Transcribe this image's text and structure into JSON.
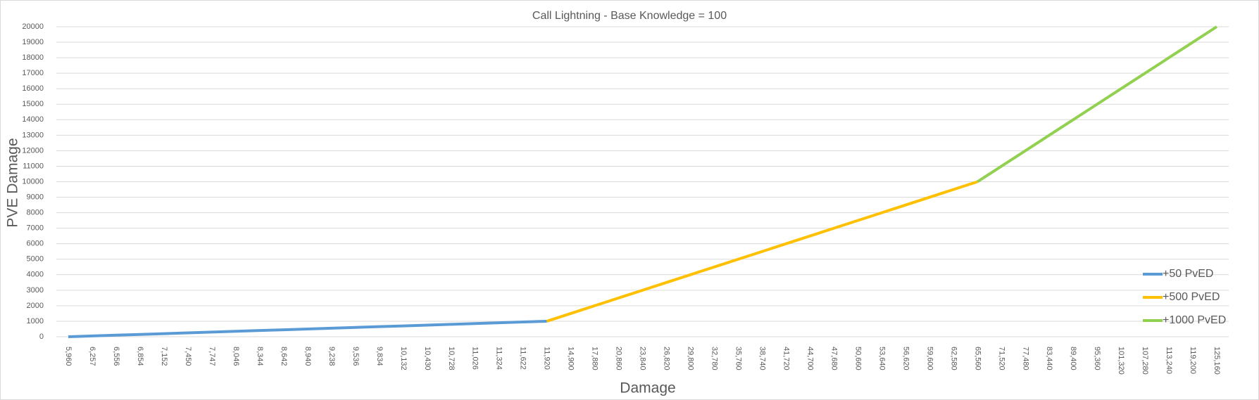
{
  "chart_data": {
    "type": "line",
    "title": "Call Lightning - Base Knowledge = 100",
    "x_label": "Damage",
    "y_label": "PVE Damage",
    "categories": [
      "5,960",
      "6,257",
      "6,556",
      "6,854",
      "7,152",
      "7,450",
      "7,747",
      "8,046",
      "8,344",
      "8,642",
      "8,940",
      "9,238",
      "9,536",
      "9,834",
      "10,132",
      "10,430",
      "10,728",
      "11,026",
      "11,324",
      "11,622",
      "11,920",
      "14,900",
      "17,880",
      "20,860",
      "23,840",
      "26,820",
      "29,800",
      "32,780",
      "35,760",
      "38,740",
      "41,720",
      "44,700",
      "47,680",
      "50,660",
      "53,640",
      "56,620",
      "59,600",
      "62,580",
      "65,560",
      "71,520",
      "77,480",
      "83,440",
      "89,400",
      "95,360",
      "101,320",
      "107,280",
      "113,240",
      "119,200",
      "125,160"
    ],
    "series": [
      {
        "name": "+50 PvED",
        "color": "#5b9bd5",
        "values": [
          0,
          50,
          100,
          150,
          200,
          250,
          300,
          350,
          400,
          450,
          500,
          550,
          600,
          650,
          700,
          750,
          800,
          850,
          900,
          950,
          1000,
          null,
          null,
          null,
          null,
          null,
          null,
          null,
          null,
          null,
          null,
          null,
          null,
          null,
          null,
          null,
          null,
          null,
          null,
          null,
          null,
          null,
          null,
          null,
          null,
          null,
          null,
          null,
          null
        ]
      },
      {
        "name": "+500 PvED",
        "color": "#ffc000",
        "values": [
          null,
          null,
          null,
          null,
          null,
          null,
          null,
          null,
          null,
          null,
          null,
          null,
          null,
          null,
          null,
          null,
          null,
          null,
          null,
          null,
          1000,
          1500,
          2000,
          2500,
          3000,
          3500,
          4000,
          4500,
          5000,
          5500,
          6000,
          6500,
          7000,
          7500,
          8000,
          8500,
          9000,
          9500,
          10000,
          null,
          null,
          null,
          null,
          null,
          null,
          null,
          null,
          null,
          null
        ]
      },
      {
        "name": "+1000 PvED",
        "color": "#92d050",
        "values": [
          null,
          null,
          null,
          null,
          null,
          null,
          null,
          null,
          null,
          null,
          null,
          null,
          null,
          null,
          null,
          null,
          null,
          null,
          null,
          null,
          null,
          null,
          null,
          null,
          null,
          null,
          null,
          null,
          null,
          null,
          null,
          null,
          null,
          null,
          null,
          null,
          null,
          null,
          10000,
          11000,
          12000,
          13000,
          14000,
          15000,
          16000,
          17000,
          18000,
          19000,
          20000
        ]
      }
    ],
    "ylim": [
      0,
      20000
    ],
    "yticks": [
      0,
      1000,
      2000,
      3000,
      4000,
      5000,
      6000,
      7000,
      8000,
      9000,
      10000,
      11000,
      12000,
      13000,
      14000,
      15000,
      16000,
      17000,
      18000,
      19000,
      20000
    ],
    "grid": true,
    "legend": "lower right"
  }
}
